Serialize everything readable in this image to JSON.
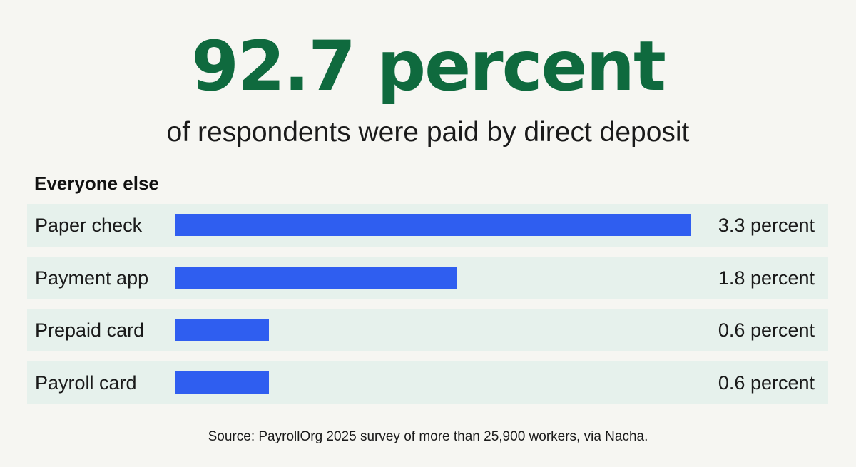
{
  "headline": "92.7 percent",
  "subhead": "of respondents were paid by direct deposit",
  "colors": {
    "headline": "#0f6a3e",
    "bar": "#2f5ef0",
    "row_background": "#e6f1ec",
    "page_background": "#f6f6f2"
  },
  "chart_data": {
    "type": "bar",
    "orientation": "horizontal",
    "title": "Everyone else",
    "categories": [
      "Paper check",
      "Payment app",
      "Prepaid card",
      "Payroll card"
    ],
    "values": [
      3.3,
      1.8,
      0.6,
      0.6
    ],
    "value_labels": [
      "3.3 percent",
      "1.8 percent",
      "0.6 percent",
      "0.6 percent"
    ],
    "xlim": [
      0,
      3.3
    ],
    "grid": false,
    "legend": "none"
  },
  "source": "Source: PayrollOrg 2025 survey of more than 25,900 workers, via Nacha."
}
